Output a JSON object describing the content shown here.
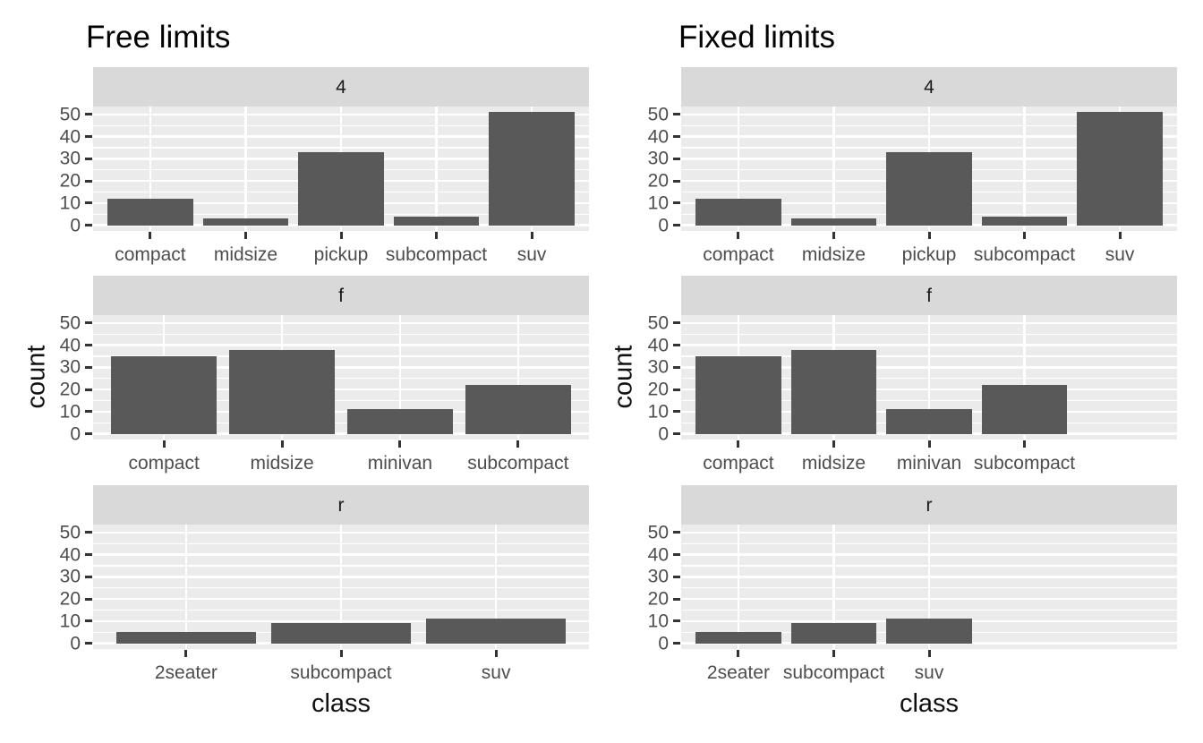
{
  "colors": {
    "background": "#ffffff",
    "bar_fill": "#595959",
    "panel_bg": "#ebebeb",
    "strip_bg": "#d9d9d9",
    "gridline": "#ffffff",
    "tick_mark": "#333333",
    "axis_text": "#4d4d4d",
    "strip_text": "#1a1a1a",
    "title_text": "#000000",
    "axis_title_text": "#111111"
  },
  "chart_data": [
    {
      "type": "bar",
      "title": "Free limits",
      "xlabel": "class",
      "ylabel": "count",
      "ylim": [
        0,
        51
      ],
      "y_major_ticks": [
        0,
        10,
        20,
        30,
        40,
        50
      ],
      "y_minor_gridlines": [
        5,
        15,
        25,
        35,
        45
      ],
      "grid": true,
      "legend": "none",
      "x_scale": "free_limits",
      "facet_layout": "rows",
      "facets": [
        {
          "label": "4",
          "categories": [
            "compact",
            "midsize",
            "pickup",
            "subcompact",
            "suv"
          ],
          "values": [
            12,
            3,
            33,
            4,
            51
          ]
        },
        {
          "label": "f",
          "categories": [
            "compact",
            "midsize",
            "minivan",
            "subcompact"
          ],
          "values": [
            35,
            38,
            11,
            22
          ]
        },
        {
          "label": "r",
          "categories": [
            "2seater",
            "subcompact",
            "suv"
          ],
          "values": [
            5,
            9,
            11
          ]
        }
      ]
    },
    {
      "type": "bar",
      "title": "Fixed limits",
      "xlabel": "class",
      "ylabel": "count",
      "ylim": [
        0,
        51
      ],
      "y_major_ticks": [
        0,
        10,
        20,
        30,
        40,
        50
      ],
      "y_minor_gridlines": [
        5,
        15,
        25,
        35,
        45
      ],
      "grid": true,
      "legend": "none",
      "x_scale": "fixed_limits",
      "x_slots": 5,
      "facet_layout": "rows",
      "facets": [
        {
          "label": "4",
          "categories": [
            "compact",
            "midsize",
            "pickup",
            "subcompact",
            "suv"
          ],
          "values": [
            12,
            3,
            33,
            4,
            51
          ]
        },
        {
          "label": "f",
          "categories": [
            "compact",
            "midsize",
            "minivan",
            "subcompact"
          ],
          "values": [
            35,
            38,
            11,
            22
          ]
        },
        {
          "label": "r",
          "categories": [
            "2seater",
            "subcompact",
            "suv"
          ],
          "values": [
            5,
            9,
            11
          ]
        }
      ]
    }
  ]
}
